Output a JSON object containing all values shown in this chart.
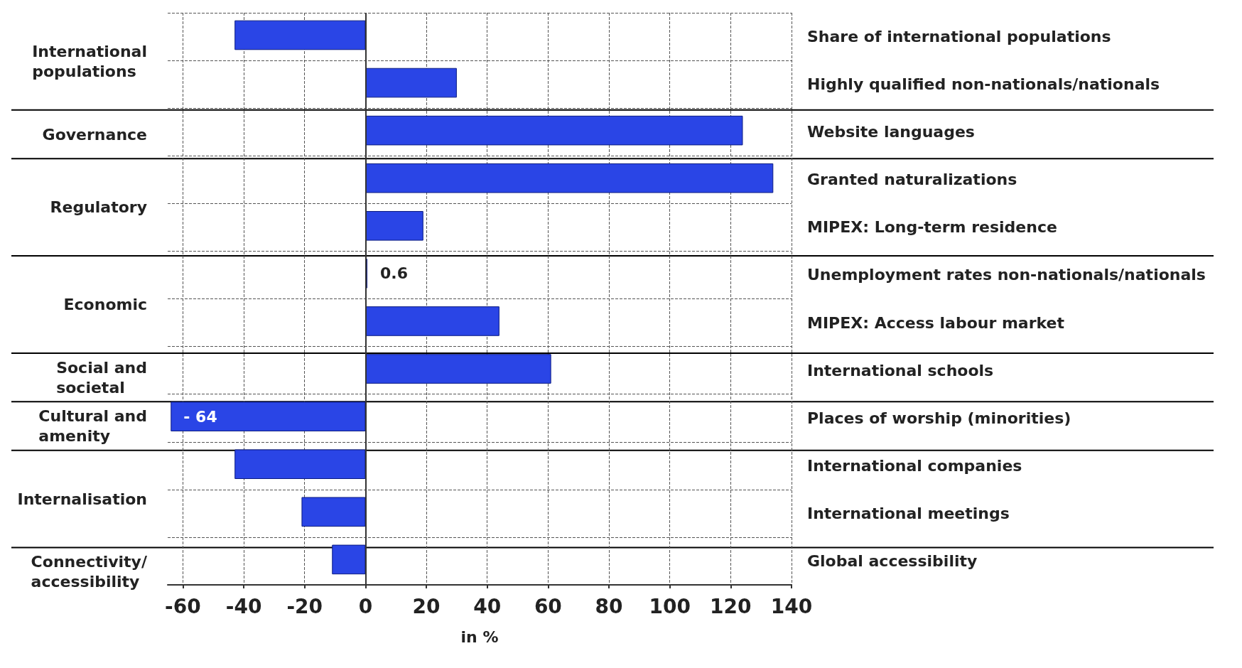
{
  "chart_data": {
    "type": "bar",
    "orientation": "horizontal",
    "xlabel": "in %",
    "categories": [
      "Share of international populations",
      "Highly qualified non-nationals/nationals",
      "Website languages",
      "Granted naturalizations",
      "MIPEX: Long-term residence",
      "Unemployment rates non-nationals/nationals",
      "MIPEX: Access labour market",
      "International schools",
      "Places of worship (minorities)",
      "International companies",
      "International meetings",
      "Global accessibility"
    ],
    "values": [
      -43,
      30,
      124,
      134,
      19,
      0.6,
      44,
      61,
      -64,
      -43,
      -21,
      -11
    ],
    "value_labels": [
      null,
      null,
      null,
      null,
      null,
      "0.6",
      null,
      null,
      "- 64",
      null,
      null,
      null
    ],
    "color": "#2a45e6",
    "xlim": [
      -65,
      140
    ],
    "xticks": [
      -60,
      -40,
      -20,
      0,
      20,
      40,
      60,
      80,
      100,
      120,
      140
    ],
    "grid": true,
    "annotations": [
      "International\npopulations",
      "Governance",
      "Regulatory",
      "Economic",
      "Social and\nsocietal",
      "Cultural and\namenity",
      "Internalisation",
      "Connectivity/\naccessibility"
    ]
  }
}
